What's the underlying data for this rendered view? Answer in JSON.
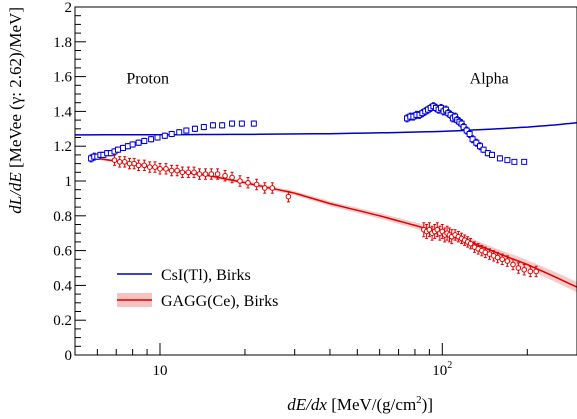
{
  "chart_data": {
    "type": "scatter",
    "x_scale": "log",
    "xlim": [
      5,
      300
    ],
    "ylim": [
      0,
      2
    ],
    "xlabel_parts": [
      "dE/dx",
      " [MeV/(g/cm",
      "2",
      ")]"
    ],
    "ylabel_parts": [
      "dL/dE",
      " [MeVee (γ: 2.62)/MeV]"
    ],
    "x_ticks": [
      {
        "value": 10,
        "label": "10"
      },
      {
        "value": 100,
        "label": "10",
        "sup": "2"
      }
    ],
    "y_ticks": [
      {
        "value": 0,
        "label": "0"
      },
      {
        "value": 0.2,
        "label": "0.2"
      },
      {
        "value": 0.4,
        "label": "0.4"
      },
      {
        "value": 0.6,
        "label": "0.6"
      },
      {
        "value": 0.8,
        "label": "0.8"
      },
      {
        "value": 1,
        "label": "1"
      },
      {
        "value": 1.2,
        "label": "1.2"
      },
      {
        "value": 1.4,
        "label": "1.4"
      },
      {
        "value": 1.6,
        "label": "1.6"
      },
      {
        "value": 1.8,
        "label": "1.8"
      },
      {
        "value": 2,
        "label": "2"
      }
    ],
    "annotations": [
      {
        "text": "Proton",
        "x": 7.6,
        "y": 1.56
      },
      {
        "text": "Alpha",
        "x": 125,
        "y": 1.56
      }
    ],
    "legend": {
      "position": "bottom-left",
      "entries": [
        {
          "label": "CsI(Tl), Birks",
          "color": "#0000cc",
          "band": false
        },
        {
          "label": "GAGG(Ce), Birks",
          "color": "#dd0000",
          "band": true
        }
      ]
    },
    "series": [
      {
        "name": "CsI(Tl), Birks",
        "kind": "curve",
        "color": "#0000cc",
        "x": [
          5,
          10,
          20,
          40,
          70,
          100,
          150,
          200,
          250,
          300
        ],
        "y": [
          1.265,
          1.266,
          1.268,
          1.272,
          1.279,
          1.285,
          1.298,
          1.31,
          1.322,
          1.335
        ]
      },
      {
        "name": "GAGG(Ce), Birks",
        "kind": "curve_band",
        "color": "#dd0000",
        "band_color": "#f4a8a8",
        "x": [
          6,
          8,
          10,
          15,
          20,
          30,
          40,
          60,
          80,
          100,
          130,
          160,
          200,
          250,
          300
        ],
        "y": [
          1.13,
          1.1,
          1.07,
          1.03,
          0.99,
          0.93,
          0.87,
          0.8,
          0.745,
          0.7,
          0.64,
          0.58,
          0.52,
          0.45,
          0.39
        ],
        "band": [
          0.008,
          0.008,
          0.009,
          0.01,
          0.011,
          0.012,
          0.014,
          0.016,
          0.018,
          0.02,
          0.022,
          0.024,
          0.026,
          0.028,
          0.03
        ]
      },
      {
        "name": "",
        "kind": "points",
        "marker": "square-open",
        "color": "#0000dd",
        "x": [
          5.7,
          5.85,
          6.0,
          6.15,
          6.3,
          6.5,
          6.7,
          6.9,
          7.1,
          7.4,
          7.7,
          8.0,
          8.4,
          8.8,
          9.3,
          9.8,
          10.4,
          11.0,
          11.7,
          12.4,
          13.3,
          14.3,
          15.4,
          16.6,
          18.0,
          19.5,
          21.5
        ],
        "y": [
          1.13,
          1.14,
          1.14,
          1.15,
          1.15,
          1.16,
          1.16,
          1.17,
          1.18,
          1.19,
          1.2,
          1.21,
          1.22,
          1.23,
          1.24,
          1.25,
          1.26,
          1.27,
          1.28,
          1.29,
          1.3,
          1.31,
          1.32,
          1.32,
          1.33,
          1.33,
          1.33
        ],
        "err": [
          0.02,
          0.02,
          0.015,
          0.015,
          0.015,
          0.015,
          0.015,
          0.015,
          0.015,
          0.015,
          0.015,
          0.015,
          0.015,
          0.015,
          0.015,
          0.015,
          0.015,
          0.015,
          0.015,
          0.015,
          0.015,
          0.015,
          0.015,
          0.015,
          0.015,
          0.015,
          0.015
        ]
      },
      {
        "name": "",
        "kind": "points",
        "marker": "square-open",
        "color": "#0000dd",
        "x": [
          75,
          77,
          79,
          81,
          83,
          85,
          87,
          89,
          91,
          93,
          95,
          97,
          99,
          101,
          103,
          105,
          107,
          109,
          111,
          113,
          115,
          117,
          119,
          122,
          125,
          128,
          132,
          136,
          140,
          145,
          150,
          160,
          170,
          180,
          195
        ],
        "y": [
          1.36,
          1.37,
          1.37,
          1.38,
          1.38,
          1.39,
          1.4,
          1.41,
          1.42,
          1.43,
          1.42,
          1.41,
          1.42,
          1.4,
          1.41,
          1.39,
          1.38,
          1.36,
          1.37,
          1.35,
          1.34,
          1.33,
          1.31,
          1.29,
          1.27,
          1.24,
          1.22,
          1.2,
          1.18,
          1.16,
          1.15,
          1.13,
          1.12,
          1.11,
          1.11
        ],
        "err": [
          0.02,
          0.02,
          0.02,
          0.02,
          0.02,
          0.02,
          0.02,
          0.02,
          0.02,
          0.02,
          0.02,
          0.02,
          0.02,
          0.02,
          0.02,
          0.02,
          0.02,
          0.02,
          0.02,
          0.02,
          0.02,
          0.02,
          0.02,
          0.02,
          0.02,
          0.02,
          0.02,
          0.02,
          0.015,
          0.015,
          0.015,
          0.015,
          0.01,
          0.01,
          0.01
        ]
      },
      {
        "name": "",
        "kind": "points",
        "marker": "circle-open",
        "color": "#dd0000",
        "x": [
          6.9,
          7.2,
          7.5,
          7.8,
          8.1,
          8.4,
          8.8,
          9.2,
          9.6,
          10.0,
          10.5,
          11.0,
          11.5,
          12.0,
          12.6,
          13.2,
          13.8,
          14.5,
          15.2,
          16.0,
          17.0,
          18.0,
          19.2,
          20.5,
          22.0,
          23.5,
          25.0,
          28.5
        ],
        "y": [
          1.12,
          1.11,
          1.11,
          1.1,
          1.1,
          1.09,
          1.09,
          1.08,
          1.08,
          1.07,
          1.07,
          1.06,
          1.06,
          1.05,
          1.05,
          1.05,
          1.04,
          1.04,
          1.04,
          1.04,
          1.03,
          1.02,
          1.0,
          0.99,
          0.98,
          0.96,
          0.96,
          0.91
        ],
        "err": [
          0.03,
          0.03,
          0.03,
          0.03,
          0.03,
          0.03,
          0.03,
          0.03,
          0.03,
          0.03,
          0.03,
          0.03,
          0.03,
          0.03,
          0.03,
          0.03,
          0.03,
          0.03,
          0.03,
          0.03,
          0.03,
          0.03,
          0.03,
          0.03,
          0.03,
          0.03,
          0.03,
          0.03
        ]
      },
      {
        "name": "",
        "kind": "points",
        "marker": "circle-open",
        "color": "#dd0000",
        "x": [
          86,
          88,
          90,
          92,
          94,
          96,
          98,
          100,
          102,
          104,
          106,
          108,
          111,
          114,
          117,
          120,
          123,
          126,
          130,
          134,
          138,
          142,
          147,
          152,
          157,
          163,
          170,
          178,
          186,
          195,
          205,
          215
        ],
        "y": [
          0.72,
          0.71,
          0.72,
          0.7,
          0.71,
          0.72,
          0.7,
          0.71,
          0.69,
          0.7,
          0.69,
          0.68,
          0.69,
          0.68,
          0.67,
          0.66,
          0.65,
          0.64,
          0.62,
          0.61,
          0.6,
          0.59,
          0.58,
          0.57,
          0.56,
          0.55,
          0.54,
          0.52,
          0.5,
          0.49,
          0.48,
          0.48
        ],
        "err": [
          0.04,
          0.04,
          0.04,
          0.04,
          0.04,
          0.04,
          0.04,
          0.04,
          0.04,
          0.04,
          0.04,
          0.04,
          0.03,
          0.03,
          0.03,
          0.03,
          0.03,
          0.03,
          0.03,
          0.03,
          0.03,
          0.03,
          0.03,
          0.03,
          0.03,
          0.03,
          0.03,
          0.03,
          0.03,
          0.03,
          0.03,
          0.03
        ]
      }
    ]
  }
}
